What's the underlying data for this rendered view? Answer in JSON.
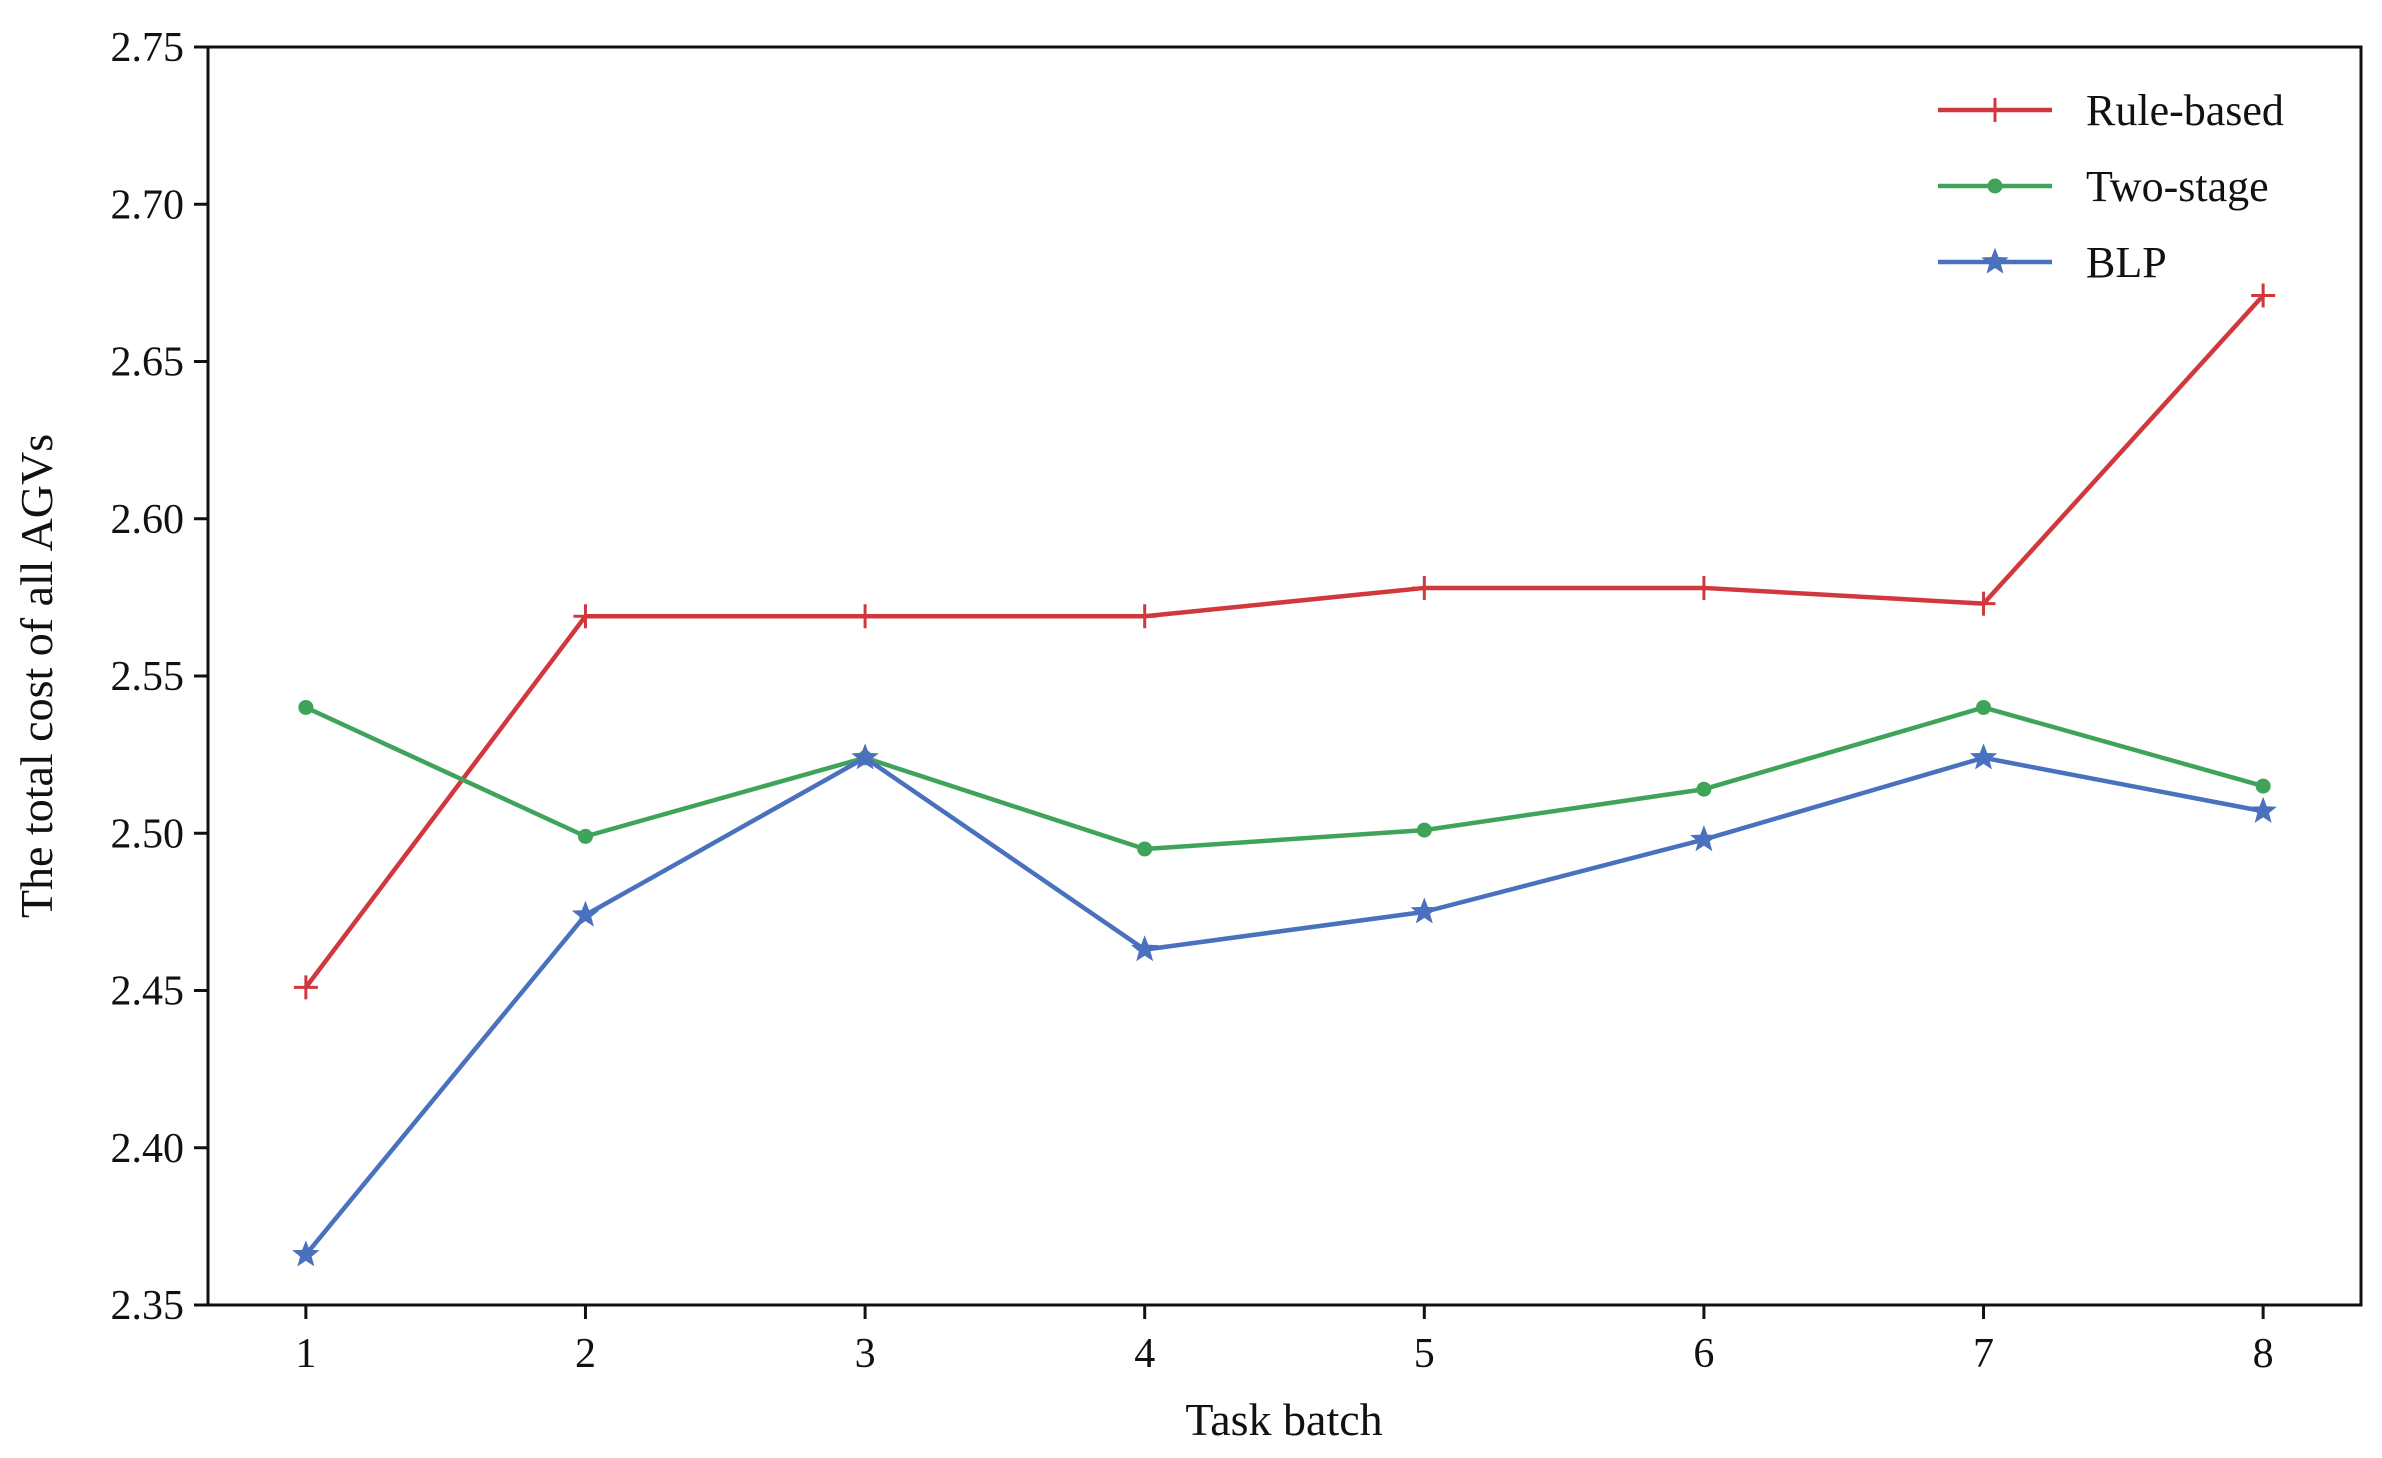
{
  "chart_data": {
    "type": "line",
    "xlabel": "Task batch",
    "ylabel": "The total cost of all AGVs",
    "x": [
      1,
      2,
      3,
      4,
      5,
      6,
      7,
      8
    ],
    "xticks": [
      "1",
      "2",
      "3",
      "4",
      "5",
      "6",
      "7",
      "8"
    ],
    "xlim": [
      0.65,
      8.35
    ],
    "ylim": [
      2.35,
      2.75
    ],
    "yticks": [
      "2.35",
      "2.40",
      "2.45",
      "2.50",
      "2.55",
      "2.60",
      "2.65",
      "2.70",
      "2.75"
    ],
    "grid": false,
    "legend_position": "top-right",
    "series": [
      {
        "name": "Rule-based",
        "color": "#d0383e",
        "marker": "plus",
        "values": [
          2.451,
          2.569,
          2.569,
          2.569,
          2.578,
          2.578,
          2.573,
          2.671
        ]
      },
      {
        "name": "Two-stage",
        "color": "#3fa45a",
        "marker": "circle",
        "values": [
          2.54,
          2.499,
          2.524,
          2.495,
          2.501,
          2.514,
          2.54,
          2.515
        ]
      },
      {
        "name": "BLP",
        "color": "#4a71bd",
        "marker": "star",
        "values": [
          2.366,
          2.474,
          2.524,
          2.463,
          2.475,
          2.498,
          2.524,
          2.507
        ]
      }
    ]
  }
}
